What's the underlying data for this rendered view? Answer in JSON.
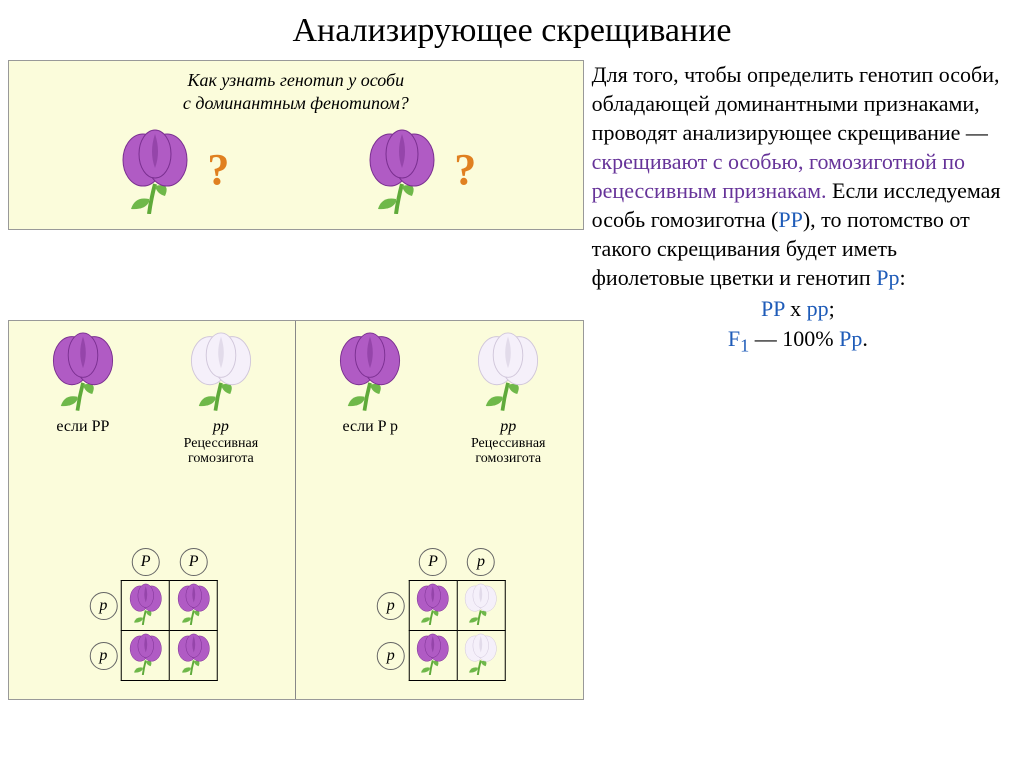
{
  "title": "Анализирующее скрещивание",
  "panel_bg": "#fbfcdb",
  "colors": {
    "purple_petal": "#b05bc4",
    "purple_petal_dark": "#7a2f90",
    "white_petal": "#f5f0fa",
    "white_petal_edge": "#d0c6da",
    "stem": "#5faa3a",
    "leaf": "#6fb84a",
    "qmark": "#e08020",
    "text_purple": "#663399",
    "text_blue": "#1e5bb8",
    "text_black": "#000000"
  },
  "top_panel": {
    "question_line1": "Как узнать генотип у особи",
    "question_line2": "с доминантным фенотипом?"
  },
  "bottom_panel": {
    "left": {
      "f1_geno": "если PP",
      "f2_geno": "pp",
      "f2_sub1": "Рецессивная",
      "f2_sub2": "гомозигота",
      "alleles_top": [
        "P",
        "P"
      ],
      "alleles_left": [
        "p",
        "p"
      ],
      "cells": [
        [
          "purple",
          "purple"
        ],
        [
          "purple",
          "purple"
        ]
      ]
    },
    "right": {
      "f1_geno": "если P p",
      "f2_geno": "pp",
      "f2_sub1": "Рецессивная",
      "f2_sub2": "гомозигота",
      "alleles_top": [
        "P",
        "p"
      ],
      "alleles_left": [
        "p",
        "p"
      ],
      "cells": [
        [
          "purple",
          "white"
        ],
        [
          "purple",
          "white"
        ]
      ]
    }
  },
  "body": {
    "p1": "Для того, чтобы определить генотип особи, обладающей доминантными признаками, проводят анализирующее скрещивание —",
    "p2_hl": "скрещивают с особью, гомозиготной по рецессивным признакам.",
    "p3a": "Если исследуемая особь гомозиготна (",
    "p3b": "PP",
    "p3c": "), то потомство от такого скрещивания будет иметь фиолетовые цветки и генотип ",
    "p3d": "Pp",
    "p3e": ":",
    "formula1_a": "PP",
    "formula1_b": " x ",
    "formula1_c": "pp",
    "formula1_d": ";",
    "formula2_a": "F",
    "formula2_sub": "1",
    "formula2_b": " — 100% ",
    "formula2_c": "Pp",
    "formula2_d": "."
  }
}
